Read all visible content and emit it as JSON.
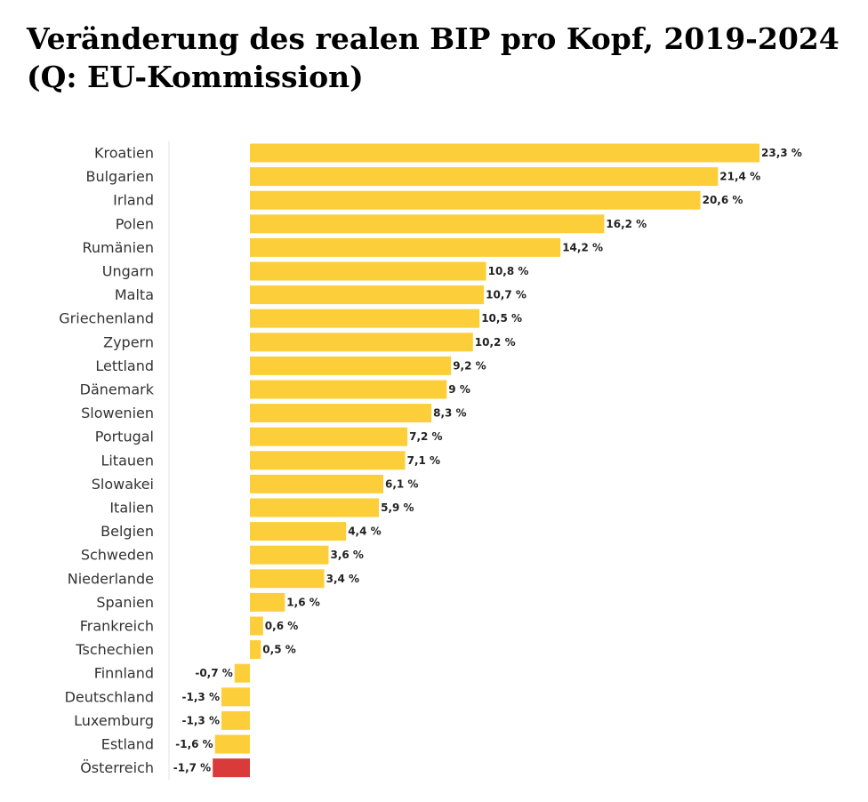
{
  "title": "Veränderung des realen BIP pro Kopf, 2019-2024 (Q: EU-Kommission)",
  "chart_data": {
    "type": "bar",
    "orientation": "horizontal",
    "title": "Veränderung des realen BIP pro Kopf, 2019-2024 (Q: EU-Kommission)",
    "xlabel": "",
    "ylabel": "",
    "xlim": [
      -1.7,
      23.3
    ],
    "grid": false,
    "legend": "none",
    "categories": [
      "Kroatien",
      "Bulgarien",
      "Irland",
      "Polen",
      "Rumänien",
      "Ungarn",
      "Malta",
      "Griechenland",
      "Zypern",
      "Lettland",
      "Dänemark",
      "Slowenien",
      "Portugal",
      "Litauen",
      "Slowakei",
      "Italien",
      "Belgien",
      "Schweden",
      "Niederlande",
      "Spanien",
      "Frankreich",
      "Tschechien",
      "Finnland",
      "Deutschland",
      "Luxemburg",
      "Estland",
      "Österreich"
    ],
    "values": [
      23.3,
      21.4,
      20.6,
      16.2,
      14.2,
      10.8,
      10.7,
      10.5,
      10.2,
      9.2,
      9,
      8.3,
      7.2,
      7.1,
      6.1,
      5.9,
      4.4,
      3.6,
      3.4,
      1.6,
      0.6,
      0.5,
      -0.7,
      -1.3,
      -1.3,
      -1.6,
      -1.7
    ],
    "value_labels": [
      "23,3 %",
      "21,4 %",
      "20,6 %",
      "16,2 %",
      "14,2 %",
      "10,8 %",
      "10,7 %",
      "10,5 %",
      "10,2 %",
      "9,2 %",
      "9 %",
      "8,3 %",
      "7,2 %",
      "7,1 %",
      "6,1 %",
      "5,9 %",
      "4,4 %",
      "3,6 %",
      "3,4 %",
      "1,6 %",
      "0,6 %",
      "0,5 %",
      "-0,7 %",
      "-1,3 %",
      "-1,3 %",
      "-1,6 %",
      "-1,7 %"
    ],
    "highlight": "Österreich",
    "colors": {
      "bar": "#FCCF3A",
      "highlight": "#D93A3A",
      "axis_line": "#E3E3E3"
    }
  }
}
